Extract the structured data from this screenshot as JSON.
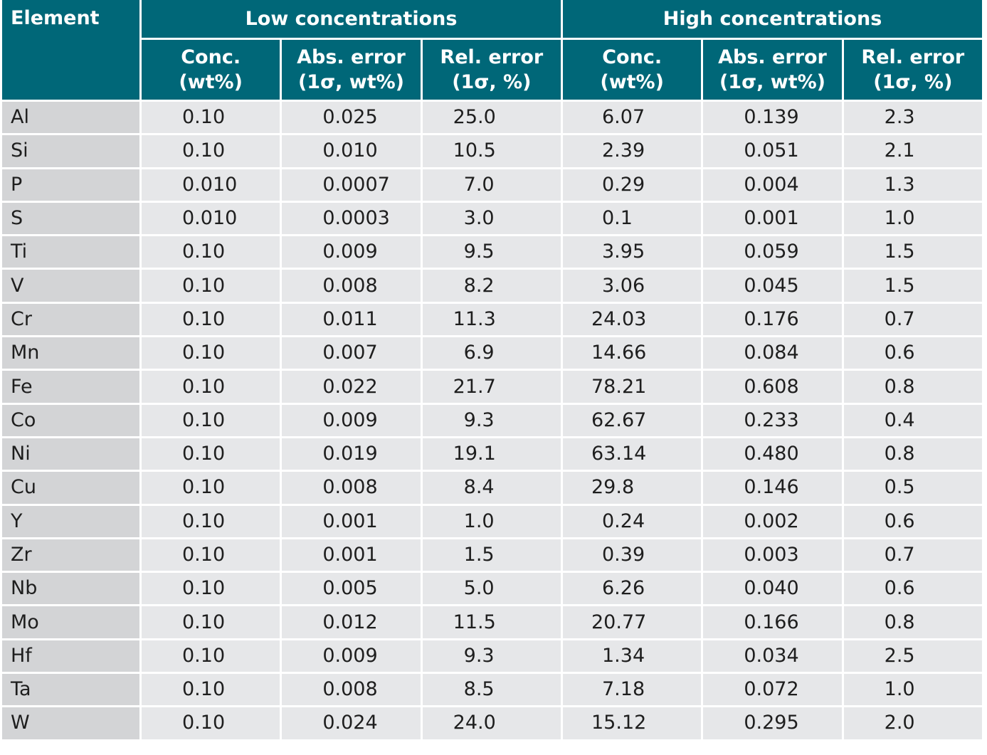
{
  "table": {
    "element_header": "Element",
    "groups": [
      "Low concentrations",
      "High concentrations"
    ],
    "columns": [
      {
        "line1": "Conc.",
        "line2": "(wt%)"
      },
      {
        "line1": "Abs. error",
        "line2": "(1σ, wt%)"
      },
      {
        "line1": "Rel. error",
        "line2": "(1σ, %)"
      },
      {
        "line1": "Conc.",
        "line2": "(wt%)"
      },
      {
        "line1": "Abs. error",
        "line2": "(1σ, wt%)"
      },
      {
        "line1": "Rel. error",
        "line2": "(1σ, %)"
      }
    ],
    "rows": [
      {
        "element": "Al",
        "values": [
          "0.10",
          "0.025",
          "25.0",
          "6.07",
          "0.139",
          "2.3"
        ]
      },
      {
        "element": "Si",
        "values": [
          "0.10",
          "0.010",
          "10.5",
          "2.39",
          "0.051",
          "2.1"
        ]
      },
      {
        "element": "P",
        "values": [
          "0.010",
          "0.0007",
          "7.0",
          "0.29",
          "0.004",
          "1.3"
        ]
      },
      {
        "element": "S",
        "values": [
          "0.010",
          "0.0003",
          "3.0",
          "0.1",
          "0.001",
          "1.0"
        ]
      },
      {
        "element": "Ti",
        "values": [
          "0.10",
          "0.009",
          "9.5",
          "3.95",
          "0.059",
          "1.5"
        ]
      },
      {
        "element": "V",
        "values": [
          "0.10",
          "0.008",
          "8.2",
          "3.06",
          "0.045",
          "1.5"
        ]
      },
      {
        "element": "Cr",
        "values": [
          "0.10",
          "0.011",
          "11.3",
          "24.03",
          "0.176",
          "0.7"
        ]
      },
      {
        "element": "Mn",
        "values": [
          "0.10",
          "0.007",
          "6.9",
          "14.66",
          "0.084",
          "0.6"
        ]
      },
      {
        "element": "Fe",
        "values": [
          "0.10",
          "0.022",
          "21.7",
          "78.21",
          "0.608",
          "0.8"
        ]
      },
      {
        "element": "Co",
        "values": [
          "0.10",
          "0.009",
          "9.3",
          "62.67",
          "0.233",
          "0.4"
        ]
      },
      {
        "element": "Ni",
        "values": [
          "0.10",
          "0.019",
          "19.1",
          "63.14",
          "0.480",
          "0.8"
        ]
      },
      {
        "element": "Cu",
        "values": [
          "0.10",
          "0.008",
          "8.4",
          "29.8",
          "0.146",
          "0.5"
        ]
      },
      {
        "element": "Y",
        "values": [
          "0.10",
          "0.001",
          "1.0",
          "0.24",
          "0.002",
          "0.6"
        ]
      },
      {
        "element": "Zr",
        "values": [
          "0.10",
          "0.001",
          "1.5",
          "0.39",
          "0.003",
          "0.7"
        ]
      },
      {
        "element": "Nb",
        "values": [
          "0.10",
          "0.005",
          "5.0",
          "6.26",
          "0.040",
          "0.6"
        ]
      },
      {
        "element": "Mo",
        "values": [
          "0.10",
          "0.012",
          "11.5",
          "20.77",
          "0.166",
          "0.8"
        ]
      },
      {
        "element": "Hf",
        "values": [
          "0.10",
          "0.009",
          "9.3",
          "1.34",
          "0.034",
          "2.5"
        ]
      },
      {
        "element": "Ta",
        "values": [
          "0.10",
          "0.008",
          "8.5",
          "7.18",
          "0.072",
          "1.0"
        ]
      },
      {
        "element": "W",
        "values": [
          "0.10",
          "0.024",
          "24.0",
          "15.12",
          "0.295",
          "2.0"
        ]
      }
    ]
  }
}
